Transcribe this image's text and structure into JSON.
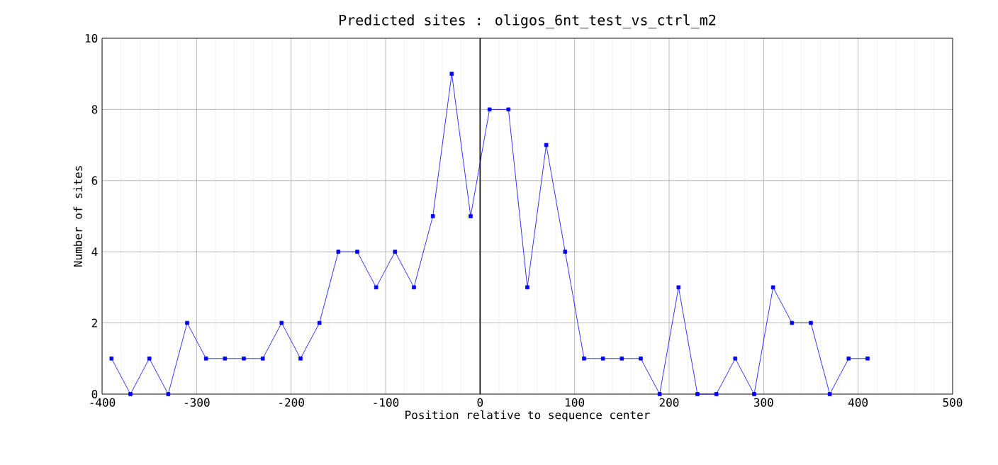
{
  "chart_data": {
    "type": "line",
    "title": "Predicted sites : oligos_6nt_test_vs_ctrl_m2",
    "xlabel": "Position relative to sequence center",
    "ylabel": "Number of sites",
    "x": [
      -390,
      -370,
      -350,
      -330,
      -310,
      -290,
      -270,
      -250,
      -230,
      -210,
      -190,
      -170,
      -150,
      -130,
      -110,
      -90,
      -70,
      -50,
      -30,
      -10,
      10,
      30,
      50,
      70,
      90,
      110,
      130,
      150,
      170,
      190,
      210,
      230,
      250,
      270,
      290,
      310,
      330,
      350,
      370,
      390,
      410
    ],
    "series": [
      {
        "color": "#0000ff",
        "values": [
          1,
          0,
          1,
          0,
          2,
          1,
          1,
          1,
          1,
          2,
          1,
          2,
          4,
          4,
          3,
          4,
          3,
          5,
          9,
          5,
          8,
          8,
          3,
          7,
          4,
          1,
          1,
          1,
          1,
          0,
          3,
          0,
          0,
          1,
          0,
          3,
          2,
          2,
          0,
          1,
          1
        ]
      }
    ],
    "xlim": [
      -400,
      500
    ],
    "xticks": [
      -400,
      -300,
      -200,
      -100,
      0,
      100,
      200,
      300,
      400,
      500
    ],
    "ylim": [
      0,
      10
    ],
    "yticks": [
      0,
      2,
      4,
      6,
      8,
      10
    ],
    "ref_lines": [
      {
        "axis": "x",
        "value": 0,
        "color": "#000000"
      }
    ],
    "grid": true,
    "marker": "square",
    "line_style": "solid"
  }
}
